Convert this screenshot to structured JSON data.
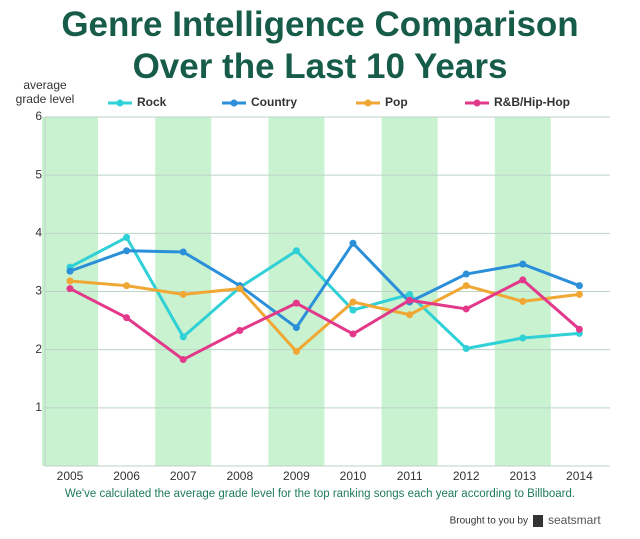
{
  "chart_data": {
    "type": "line",
    "title": "Genre Intelligence Comparison Over the Last 10 Years",
    "y_label": "average grade level",
    "categories": [
      "2005",
      "2006",
      "2007",
      "2008",
      "2009",
      "2010",
      "2011",
      "2012",
      "2013",
      "2014"
    ],
    "series": [
      {
        "name": "Rock",
        "color": "#2fd0d6",
        "values": [
          3.42,
          3.93,
          2.22,
          3.07,
          3.7,
          2.68,
          2.95,
          2.02,
          2.2,
          2.28
        ]
      },
      {
        "name": "Country",
        "color": "#2b8fd9",
        "values": [
          3.35,
          3.7,
          3.68,
          3.1,
          2.38,
          3.83,
          2.82,
          3.3,
          3.47,
          3.1
        ]
      },
      {
        "name": "Pop",
        "color": "#f0a733",
        "values": [
          3.18,
          3.1,
          2.95,
          3.05,
          1.97,
          2.82,
          2.6,
          3.1,
          2.83,
          2.95
        ]
      },
      {
        "name": "R&B/Hip-Hop",
        "color": "#e3398a",
        "values": [
          3.05,
          2.55,
          1.83,
          2.33,
          2.8,
          2.27,
          2.85,
          2.7,
          3.2,
          2.35
        ]
      }
    ],
    "ylim": [
      0,
      6
    ],
    "yticks": [
      1,
      2,
      3,
      4,
      5,
      6
    ],
    "grid": true,
    "legend": "top",
    "annotations": [
      "We've calculated the average grade level for the top ranking songs each year according to Billboard.",
      "Brought to you by",
      "seatsmart"
    ]
  }
}
